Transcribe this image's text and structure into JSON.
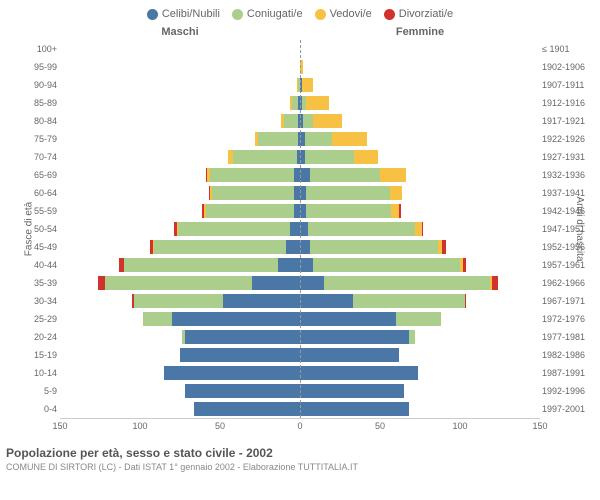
{
  "legend": [
    {
      "label": "Celibi/Nubili",
      "color": "#4b77a7"
    },
    {
      "label": "Coniugati/e",
      "color": "#abce8c"
    },
    {
      "label": "Vedovi/e",
      "color": "#f7c244"
    },
    {
      "label": "Divorziati/e",
      "color": "#d1322c"
    }
  ],
  "header": {
    "left": "Maschi",
    "right": "Femmine"
  },
  "y_title_left": "Fasce di età",
  "y_title_right": "Anni di nascita",
  "age_groups": [
    "100+",
    "95-99",
    "90-94",
    "85-89",
    "80-84",
    "75-79",
    "70-74",
    "65-69",
    "60-64",
    "55-59",
    "50-54",
    "45-49",
    "40-44",
    "35-39",
    "30-34",
    "25-29",
    "20-24",
    "15-19",
    "10-14",
    "5-9",
    "0-4"
  ],
  "birth_years": [
    "≤ 1901",
    "1902-1906",
    "1907-1911",
    "1912-1916",
    "1917-1921",
    "1922-1926",
    "1927-1931",
    "1932-1936",
    "1937-1941",
    "1942-1946",
    "1947-1951",
    "1952-1956",
    "1957-1961",
    "1962-1966",
    "1967-1971",
    "1972-1976",
    "1977-1981",
    "1982-1986",
    "1987-1991",
    "1992-1996",
    "1997-2001"
  ],
  "xlim": 150,
  "xticks_left": [
    150,
    100,
    50,
    0
  ],
  "xticks_right": [
    0,
    50,
    100,
    150
  ],
  "colors": {
    "single": "#4b77a7",
    "married": "#abce8c",
    "widowed": "#f7c244",
    "divorced": "#d1322c",
    "grid": "#cccccc",
    "bg": "#ffffff"
  },
  "data": [
    {
      "m": {
        "s": 0,
        "c": 0,
        "w": 0,
        "d": 0
      },
      "f": {
        "s": 0,
        "c": 0,
        "w": 0,
        "d": 0
      }
    },
    {
      "m": {
        "s": 0,
        "c": 0,
        "w": 0,
        "d": 0
      },
      "f": {
        "s": 0,
        "c": 0,
        "w": 2,
        "d": 0
      }
    },
    {
      "m": {
        "s": 0,
        "c": 1,
        "w": 1,
        "d": 0
      },
      "f": {
        "s": 1,
        "c": 0,
        "w": 7,
        "d": 0
      }
    },
    {
      "m": {
        "s": 1,
        "c": 4,
        "w": 1,
        "d": 0
      },
      "f": {
        "s": 1,
        "c": 3,
        "w": 14,
        "d": 0
      }
    },
    {
      "m": {
        "s": 1,
        "c": 9,
        "w": 2,
        "d": 0
      },
      "f": {
        "s": 2,
        "c": 6,
        "w": 18,
        "d": 0
      }
    },
    {
      "m": {
        "s": 1,
        "c": 25,
        "w": 2,
        "d": 0
      },
      "f": {
        "s": 3,
        "c": 17,
        "w": 22,
        "d": 0
      }
    },
    {
      "m": {
        "s": 2,
        "c": 40,
        "w": 3,
        "d": 0
      },
      "f": {
        "s": 3,
        "c": 31,
        "w": 15,
        "d": 0
      }
    },
    {
      "m": {
        "s": 4,
        "c": 52,
        "w": 2,
        "d": 1
      },
      "f": {
        "s": 6,
        "c": 44,
        "w": 16,
        "d": 0
      }
    },
    {
      "m": {
        "s": 4,
        "c": 51,
        "w": 1,
        "d": 1
      },
      "f": {
        "s": 4,
        "c": 52,
        "w": 8,
        "d": 0
      }
    },
    {
      "m": {
        "s": 4,
        "c": 55,
        "w": 1,
        "d": 1
      },
      "f": {
        "s": 4,
        "c": 53,
        "w": 5,
        "d": 1
      }
    },
    {
      "m": {
        "s": 6,
        "c": 70,
        "w": 1,
        "d": 2
      },
      "f": {
        "s": 5,
        "c": 67,
        "w": 4,
        "d": 1
      }
    },
    {
      "m": {
        "s": 9,
        "c": 82,
        "w": 1,
        "d": 2
      },
      "f": {
        "s": 6,
        "c": 80,
        "w": 3,
        "d": 2
      }
    },
    {
      "m": {
        "s": 14,
        "c": 96,
        "w": 0,
        "d": 3
      },
      "f": {
        "s": 8,
        "c": 92,
        "w": 2,
        "d": 2
      }
    },
    {
      "m": {
        "s": 30,
        "c": 92,
        "w": 0,
        "d": 4
      },
      "f": {
        "s": 15,
        "c": 104,
        "w": 1,
        "d": 4
      }
    },
    {
      "m": {
        "s": 48,
        "c": 56,
        "w": 0,
        "d": 1
      },
      "f": {
        "s": 33,
        "c": 70,
        "w": 0,
        "d": 1
      }
    },
    {
      "m": {
        "s": 80,
        "c": 18,
        "w": 0,
        "d": 0
      },
      "f": {
        "s": 60,
        "c": 28,
        "w": 0,
        "d": 0
      }
    },
    {
      "m": {
        "s": 72,
        "c": 2,
        "w": 0,
        "d": 0
      },
      "f": {
        "s": 68,
        "c": 4,
        "w": 0,
        "d": 0
      }
    },
    {
      "m": {
        "s": 75,
        "c": 0,
        "w": 0,
        "d": 0
      },
      "f": {
        "s": 62,
        "c": 0,
        "w": 0,
        "d": 0
      }
    },
    {
      "m": {
        "s": 85,
        "c": 0,
        "w": 0,
        "d": 0
      },
      "f": {
        "s": 74,
        "c": 0,
        "w": 0,
        "d": 0
      }
    },
    {
      "m": {
        "s": 72,
        "c": 0,
        "w": 0,
        "d": 0
      },
      "f": {
        "s": 65,
        "c": 0,
        "w": 0,
        "d": 0
      }
    },
    {
      "m": {
        "s": 66,
        "c": 0,
        "w": 0,
        "d": 0
      },
      "f": {
        "s": 68,
        "c": 0,
        "w": 0,
        "d": 0
      }
    }
  ],
  "title": "Popolazione per età, sesso e stato civile - 2002",
  "subtitle": "COMUNE DI SIRTORI (LC) - Dati ISTAT 1° gennaio 2002 - Elaborazione TUTTITALIA.IT",
  "fontsize": {
    "legend": 11,
    "axis": 9,
    "title": 12,
    "subtitle": 9
  }
}
